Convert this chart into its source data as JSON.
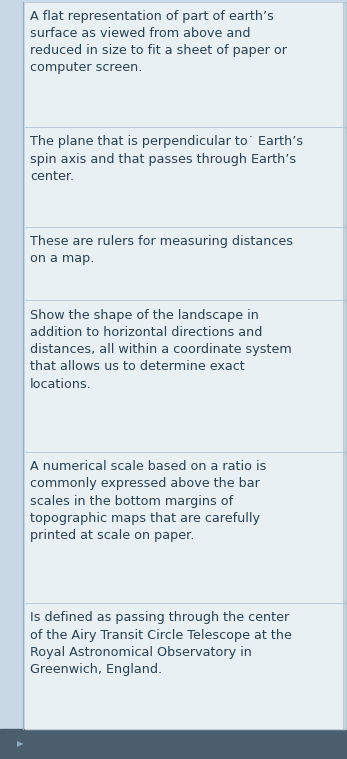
{
  "bg_color": "#c8d8e4",
  "cell_bg_color": "#e8f0f4",
  "left_line_color": "#9ab0be",
  "right_line_color": "#9ab0be",
  "divider_color": "#b0c4ce",
  "text_color": "#2a4050",
  "bottom_bar_color": "#4a5e6e",
  "font_family": "DejaVu Sans",
  "font_size": 9.2,
  "cells": [
    "A flat representation of part of earth’s\nsurface as viewed from above and\nreduced in size to fit a sheet of paper or\ncomputer screen.",
    "The plane that is perpendicular to˙ Earth’s\nspin axis and that passes through Earth’s\ncenter.",
    "These are rulers for measuring distances\non a map.",
    "Show the shape of the landscape in\naddition to horizontal directions and\ndistances, all within a coordinate system\nthat allows us to determine exact\nlocations.",
    "A numerical scale based on a ratio is\ncommonly expressed above the bar\nscales in the bottom margins of\ntopographic maps that are carefully\nprinted at scale on paper.",
    "Is defined as passing through the center\nof the Airy Transit Circle Telescope at the\nRoyal Astronomical Observatory in\nGreenwich, England."
  ],
  "line_counts": [
    4,
    3,
    2,
    5,
    5,
    4
  ],
  "fig_width": 3.47,
  "fig_height": 7.59,
  "dpi": 100
}
